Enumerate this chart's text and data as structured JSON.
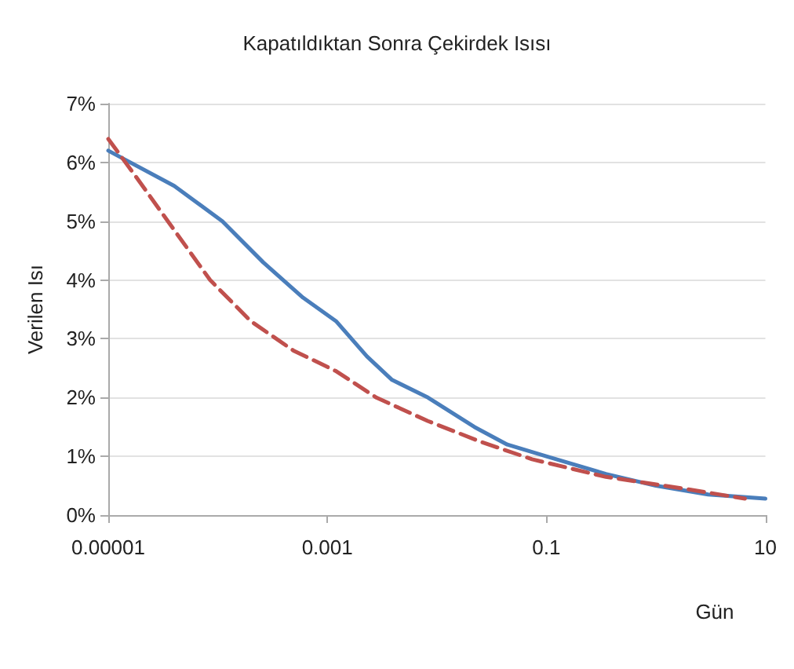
{
  "chart_data": {
    "type": "line",
    "title": "Kapatıldıktan Sonra Çekirdek Isısı",
    "xlabel": "Gün",
    "ylabel": "Verilen Isı",
    "log": "x",
    "series": [
      {
        "color": "#4a7ebb",
        "line_style": "solid",
        "x": [
          1e-05,
          4e-05,
          0.00011,
          0.00026,
          0.0006,
          0.0012,
          0.0023,
          0.0039,
          0.0083,
          0.022,
          0.044,
          0.1,
          0.35,
          1,
          3,
          10
        ],
        "values": [
          6.2,
          5.6,
          5.0,
          4.3,
          3.7,
          3.3,
          2.7,
          2.3,
          2.0,
          1.5,
          1.2,
          1.0,
          0.7,
          0.5,
          0.35,
          0.28
        ]
      },
      {
        "color": "#c0504d",
        "line_style": "dashed",
        "x": [
          1e-05,
          1.8e-05,
          3.5e-05,
          8.5e-05,
          0.0002,
          0.00049,
          0.0012,
          0.0028,
          0.0083,
          0.025,
          0.074,
          0.35,
          1.8,
          6.5
        ],
        "values": [
          6.4,
          5.75,
          5.0,
          4.0,
          3.3,
          2.8,
          2.45,
          2.0,
          1.6,
          1.25,
          0.95,
          0.65,
          0.45,
          0.28
        ]
      }
    ],
    "xlim": [
      1e-05,
      10
    ],
    "xticks": [
      {
        "value": 1e-05,
        "label": "0.00001"
      },
      {
        "value": 0.001,
        "label": "0.001"
      },
      {
        "value": 0.1,
        "label": "0.1"
      },
      {
        "value": 10,
        "label": "10"
      }
    ],
    "ylim": [
      0,
      7
    ],
    "yticks": [
      {
        "value": 0,
        "label": "0%"
      },
      {
        "value": 1,
        "label": "1%"
      },
      {
        "value": 2,
        "label": "2%"
      },
      {
        "value": 3,
        "label": "3%"
      },
      {
        "value": 4,
        "label": "4%"
      },
      {
        "value": 5,
        "label": "5%"
      },
      {
        "value": 6,
        "label": "6%"
      },
      {
        "value": 7,
        "label": "7%"
      }
    ],
    "grid": "y",
    "marker": "none"
  }
}
